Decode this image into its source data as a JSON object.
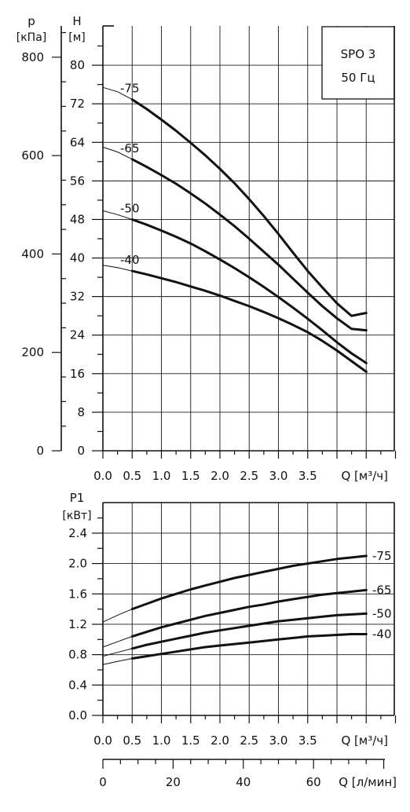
{
  "chart_data": [
    {
      "type": "line",
      "title": "SPO 3",
      "subtitle": "50 Гц",
      "x_label": "Q [м³/ч]",
      "y_label_symbol": "H",
      "y_label_unit": "[м]",
      "y2_label_symbol": "p",
      "y2_label_unit": "[кПа]",
      "x_range": [
        0,
        5
      ],
      "y_range": [
        0,
        88
      ],
      "y2_range": [
        0,
        862
      ],
      "x_ticks": [
        "0.0",
        "0.5",
        "1.0",
        "1.5",
        "2.0",
        "2.5",
        "3.0",
        "3.5"
      ],
      "y_ticks": [
        "0",
        "8",
        "16",
        "24",
        "32",
        "40",
        "48",
        "56",
        "64",
        "72",
        "80"
      ],
      "y2_ticks": [
        "0",
        "200",
        "400",
        "600",
        "800"
      ],
      "grid": true,
      "series": [
        {
          "name": "-75",
          "x": [
            0,
            0.25,
            0.5,
            0.75,
            1.0,
            1.25,
            1.5,
            1.75,
            2.0,
            2.25,
            2.5,
            2.75,
            3.0,
            3.25,
            3.5,
            3.75,
            4.0,
            4.25,
            4.5
          ],
          "y": [
            75.4,
            74.5,
            72.9,
            70.9,
            68.7,
            66.4,
            63.9,
            61.3,
            58.5,
            55.5,
            52.2,
            48.7,
            45.0,
            41.1,
            37.3,
            33.9,
            30.6,
            28.0,
            28.6
          ]
        },
        {
          "name": "-65",
          "x": [
            0,
            0.25,
            0.5,
            0.75,
            1.0,
            1.25,
            1.5,
            1.75,
            2.0,
            2.25,
            2.5,
            2.75,
            3.0,
            3.25,
            3.5,
            3.75,
            4.0,
            4.25,
            4.5
          ],
          "y": [
            63.0,
            62.0,
            60.5,
            58.9,
            57.2,
            55.4,
            53.4,
            51.3,
            49.0,
            46.6,
            44.0,
            41.3,
            38.6,
            35.7,
            32.8,
            30.0,
            27.5,
            25.3,
            25.0
          ]
        },
        {
          "name": "-50",
          "x": [
            0,
            0.25,
            0.5,
            0.75,
            1.0,
            1.25,
            1.5,
            1.75,
            2.0,
            2.25,
            2.5,
            2.75,
            3.0,
            3.25,
            3.5,
            3.75,
            4.0,
            4.25,
            4.5
          ],
          "y": [
            49.8,
            49.0,
            48.0,
            46.9,
            45.7,
            44.4,
            43.0,
            41.4,
            39.7,
            37.9,
            36.0,
            34.0,
            31.9,
            29.7,
            27.4,
            25.0,
            22.5,
            20.2,
            18.2
          ]
        },
        {
          "name": "-40",
          "x": [
            0,
            0.25,
            0.5,
            0.75,
            1.0,
            1.25,
            1.5,
            1.75,
            2.0,
            2.25,
            2.5,
            2.75,
            3.0,
            3.25,
            3.5,
            3.75,
            4.0,
            4.25,
            4.5
          ],
          "y": [
            38.5,
            38.0,
            37.3,
            36.6,
            35.8,
            35.0,
            34.1,
            33.2,
            32.2,
            31.1,
            30.0,
            28.8,
            27.5,
            26.1,
            24.6,
            22.8,
            20.8,
            18.6,
            16.4
          ]
        }
      ]
    },
    {
      "type": "line",
      "x_label": "Q [м³/ч]",
      "y_label_symbol": "P1",
      "y_label_unit": "[кВт]",
      "x2_label": "Q [л/мин]",
      "x_range": [
        0,
        5
      ],
      "y_range": [
        0,
        2.4
      ],
      "x2_range": [
        0,
        83.33
      ],
      "x_ticks": [
        "0.0",
        "0.5",
        "1.0",
        "1.5",
        "2.0",
        "2.5",
        "3.0",
        "3.5"
      ],
      "y_ticks": [
        "0.0",
        "0.4",
        "0.8",
        "1.2",
        "1.6",
        "2.0",
        "2.4"
      ],
      "x2_ticks": [
        "0",
        "20",
        "40",
        "60"
      ],
      "grid": true,
      "series": [
        {
          "name": "-75",
          "x": [
            0,
            0.25,
            0.5,
            0.75,
            1.0,
            1.25,
            1.5,
            1.75,
            2.0,
            2.25,
            2.5,
            2.75,
            3.0,
            3.25,
            3.5,
            3.75,
            4.0,
            4.25,
            4.5
          ],
          "y": [
            1.23,
            1.32,
            1.4,
            1.47,
            1.54,
            1.6,
            1.66,
            1.71,
            1.76,
            1.81,
            1.85,
            1.89,
            1.93,
            1.97,
            2.0,
            2.03,
            2.06,
            2.08,
            2.1
          ]
        },
        {
          "name": "-65",
          "x": [
            0,
            0.25,
            0.5,
            0.75,
            1.0,
            1.25,
            1.5,
            1.75,
            2.0,
            2.25,
            2.5,
            2.75,
            3.0,
            3.25,
            3.5,
            3.75,
            4.0,
            4.25,
            4.5
          ],
          "y": [
            0.9,
            0.97,
            1.04,
            1.1,
            1.16,
            1.21,
            1.26,
            1.31,
            1.35,
            1.39,
            1.43,
            1.46,
            1.5,
            1.53,
            1.56,
            1.59,
            1.61,
            1.63,
            1.65
          ]
        },
        {
          "name": "-50",
          "x": [
            0,
            0.25,
            0.5,
            0.75,
            1.0,
            1.25,
            1.5,
            1.75,
            2.0,
            2.25,
            2.5,
            2.75,
            3.0,
            3.25,
            3.5,
            3.75,
            4.0,
            4.25,
            4.5
          ],
          "y": [
            0.78,
            0.83,
            0.88,
            0.93,
            0.97,
            1.01,
            1.05,
            1.09,
            1.12,
            1.15,
            1.18,
            1.21,
            1.24,
            1.26,
            1.28,
            1.3,
            1.32,
            1.33,
            1.34
          ]
        },
        {
          "name": "-40",
          "x": [
            0,
            0.25,
            0.5,
            0.75,
            1.0,
            1.25,
            1.5,
            1.75,
            2.0,
            2.25,
            2.5,
            2.75,
            3.0,
            3.25,
            3.5,
            3.75,
            4.0,
            4.25,
            4.5
          ],
          "y": [
            0.67,
            0.71,
            0.75,
            0.78,
            0.81,
            0.84,
            0.87,
            0.9,
            0.92,
            0.94,
            0.96,
            0.98,
            1.0,
            1.02,
            1.04,
            1.05,
            1.06,
            1.07,
            1.07
          ]
        }
      ]
    }
  ]
}
